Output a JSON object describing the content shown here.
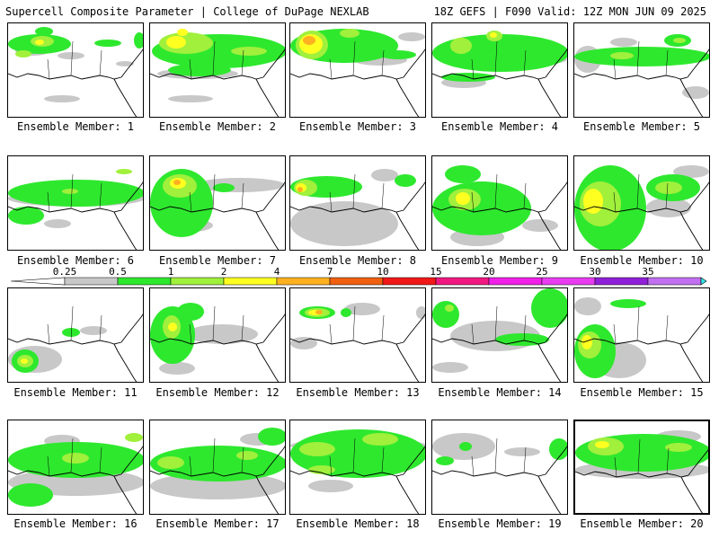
{
  "header": {
    "left": "Supercell Composite Parameter | College of DuPage NEXLAB",
    "right": "18Z GEFS | F090 Valid: 12Z MON JUN 09 2025"
  },
  "panel_label_prefix": "Ensemble Member: ",
  "members": [
    {
      "n": "1",
      "fields": [
        {
          "lvl": 0,
          "x": 8,
          "y": 26,
          "w": 38,
          "h": 10
        },
        {
          "lvl": 0,
          "x": 55,
          "y": 32,
          "w": 30,
          "h": 8
        },
        {
          "lvl": 0,
          "x": 120,
          "y": 42,
          "w": 20,
          "h": 6
        },
        {
          "lvl": 0,
          "x": 40,
          "y": 80,
          "w": 40,
          "h": 8
        },
        {
          "lvl": 1,
          "x": 0,
          "y": 12,
          "w": 70,
          "h": 22
        },
        {
          "lvl": 1,
          "x": 30,
          "y": 4,
          "w": 20,
          "h": 10
        },
        {
          "lvl": 1,
          "x": 96,
          "y": 18,
          "w": 30,
          "h": 8
        },
        {
          "lvl": 1,
          "x": 140,
          "y": 10,
          "w": 12,
          "h": 18
        },
        {
          "lvl": 2,
          "x": 25,
          "y": 14,
          "w": 26,
          "h": 12
        },
        {
          "lvl": 2,
          "x": 8,
          "y": 30,
          "w": 18,
          "h": 8
        },
        {
          "lvl": 3,
          "x": 30,
          "y": 18,
          "w": 10,
          "h": 6
        }
      ]
    },
    {
      "n": "2",
      "fields": [
        {
          "lvl": 0,
          "x": 8,
          "y": 50,
          "w": 90,
          "h": 12
        },
        {
          "lvl": 0,
          "x": 20,
          "y": 80,
          "w": 50,
          "h": 8
        },
        {
          "lvl": 1,
          "x": 2,
          "y": 12,
          "w": 150,
          "h": 38
        },
        {
          "lvl": 1,
          "x": 20,
          "y": 45,
          "w": 70,
          "h": 14
        },
        {
          "lvl": 2,
          "x": 10,
          "y": 10,
          "w": 60,
          "h": 24
        },
        {
          "lvl": 2,
          "x": 90,
          "y": 26,
          "w": 40,
          "h": 10
        },
        {
          "lvl": 3,
          "x": 18,
          "y": 14,
          "w": 22,
          "h": 14
        },
        {
          "lvl": 3,
          "x": 30,
          "y": 6,
          "w": 12,
          "h": 8
        }
      ]
    },
    {
      "n": "3",
      "fields": [
        {
          "lvl": 0,
          "x": 70,
          "y": 35,
          "w": 60,
          "h": 12
        },
        {
          "lvl": 0,
          "x": 120,
          "y": 10,
          "w": 30,
          "h": 10
        },
        {
          "lvl": 1,
          "x": 0,
          "y": 6,
          "w": 120,
          "h": 38
        },
        {
          "lvl": 1,
          "x": 100,
          "y": 30,
          "w": 40,
          "h": 10
        },
        {
          "lvl": 2,
          "x": 6,
          "y": 8,
          "w": 36,
          "h": 32
        },
        {
          "lvl": 2,
          "x": 55,
          "y": 6,
          "w": 22,
          "h": 10
        },
        {
          "lvl": 3,
          "x": 10,
          "y": 12,
          "w": 26,
          "h": 22
        },
        {
          "lvl": 4,
          "x": 14,
          "y": 14,
          "w": 14,
          "h": 10
        }
      ]
    },
    {
      "n": "4",
      "fields": [
        {
          "lvl": 0,
          "x": 10,
          "y": 60,
          "w": 50,
          "h": 12
        },
        {
          "lvl": 0,
          "x": 110,
          "y": 35,
          "w": 40,
          "h": 10
        },
        {
          "lvl": 1,
          "x": 0,
          "y": 12,
          "w": 152,
          "h": 42
        },
        {
          "lvl": 1,
          "x": 10,
          "y": 55,
          "w": 60,
          "h": 10
        },
        {
          "lvl": 2,
          "x": 20,
          "y": 16,
          "w": 24,
          "h": 18
        },
        {
          "lvl": 2,
          "x": 60,
          "y": 8,
          "w": 18,
          "h": 12
        },
        {
          "lvl": 3,
          "x": 64,
          "y": 10,
          "w": 8,
          "h": 6
        }
      ]
    },
    {
      "n": "5",
      "fields": [
        {
          "lvl": 0,
          "x": 0,
          "y": 25,
          "w": 30,
          "h": 30
        },
        {
          "lvl": 0,
          "x": 40,
          "y": 16,
          "w": 30,
          "h": 10
        },
        {
          "lvl": 0,
          "x": 120,
          "y": 70,
          "w": 30,
          "h": 14
        },
        {
          "lvl": 1,
          "x": 0,
          "y": 26,
          "w": 152,
          "h": 22
        },
        {
          "lvl": 1,
          "x": 100,
          "y": 12,
          "w": 30,
          "h": 14
        },
        {
          "lvl": 2,
          "x": 40,
          "y": 32,
          "w": 26,
          "h": 8
        },
        {
          "lvl": 2,
          "x": 110,
          "y": 16,
          "w": 14,
          "h": 6
        }
      ]
    },
    {
      "n": "6",
      "fields": [
        {
          "lvl": 0,
          "x": 0,
          "y": 38,
          "w": 152,
          "h": 18
        },
        {
          "lvl": 0,
          "x": 40,
          "y": 70,
          "w": 30,
          "h": 10
        },
        {
          "lvl": 1,
          "x": 0,
          "y": 26,
          "w": 152,
          "h": 30
        },
        {
          "lvl": 1,
          "x": 0,
          "y": 56,
          "w": 40,
          "h": 20
        },
        {
          "lvl": 2,
          "x": 60,
          "y": 36,
          "w": 18,
          "h": 6
        },
        {
          "lvl": 2,
          "x": 120,
          "y": 14,
          "w": 18,
          "h": 6
        }
      ]
    },
    {
      "n": "7",
      "fields": [
        {
          "lvl": 0,
          "x": 50,
          "y": 24,
          "w": 100,
          "h": 16
        },
        {
          "lvl": 0,
          "x": 20,
          "y": 70,
          "w": 50,
          "h": 14
        },
        {
          "lvl": 1,
          "x": 0,
          "y": 14,
          "w": 70,
          "h": 76
        },
        {
          "lvl": 1,
          "x": 70,
          "y": 30,
          "w": 24,
          "h": 10
        },
        {
          "lvl": 2,
          "x": 14,
          "y": 20,
          "w": 38,
          "h": 26
        },
        {
          "lvl": 3,
          "x": 22,
          "y": 24,
          "w": 18,
          "h": 12
        },
        {
          "lvl": 4,
          "x": 26,
          "y": 26,
          "w": 8,
          "h": 6
        }
      ]
    },
    {
      "n": "8",
      "fields": [
        {
          "lvl": 0,
          "x": 0,
          "y": 50,
          "w": 120,
          "h": 50
        },
        {
          "lvl": 0,
          "x": 90,
          "y": 14,
          "w": 30,
          "h": 14
        },
        {
          "lvl": 1,
          "x": 0,
          "y": 22,
          "w": 80,
          "h": 24
        },
        {
          "lvl": 1,
          "x": 116,
          "y": 20,
          "w": 24,
          "h": 14
        },
        {
          "lvl": 2,
          "x": 4,
          "y": 26,
          "w": 26,
          "h": 18
        },
        {
          "lvl": 3,
          "x": 6,
          "y": 30,
          "w": 12,
          "h": 10
        },
        {
          "lvl": 4,
          "x": 8,
          "y": 34,
          "w": 6,
          "h": 6
        }
      ]
    },
    {
      "n": "9",
      "fields": [
        {
          "lvl": 0,
          "x": 20,
          "y": 80,
          "w": 60,
          "h": 20
        },
        {
          "lvl": 0,
          "x": 100,
          "y": 70,
          "w": 40,
          "h": 14
        },
        {
          "lvl": 1,
          "x": 0,
          "y": 28,
          "w": 110,
          "h": 60
        },
        {
          "lvl": 1,
          "x": 14,
          "y": 10,
          "w": 40,
          "h": 20
        },
        {
          "lvl": 2,
          "x": 18,
          "y": 36,
          "w": 36,
          "h": 24
        },
        {
          "lvl": 3,
          "x": 26,
          "y": 40,
          "w": 16,
          "h": 14
        }
      ]
    },
    {
      "n": "10",
      "fields": [
        {
          "lvl": 0,
          "x": 80,
          "y": 46,
          "w": 50,
          "h": 22
        },
        {
          "lvl": 0,
          "x": 110,
          "y": 10,
          "w": 40,
          "h": 14
        },
        {
          "lvl": 1,
          "x": 0,
          "y": 10,
          "w": 80,
          "h": 96
        },
        {
          "lvl": 1,
          "x": 80,
          "y": 20,
          "w": 60,
          "h": 30
        },
        {
          "lvl": 2,
          "x": 6,
          "y": 28,
          "w": 46,
          "h": 50
        },
        {
          "lvl": 2,
          "x": 90,
          "y": 28,
          "w": 30,
          "h": 14
        },
        {
          "lvl": 3,
          "x": 10,
          "y": 36,
          "w": 22,
          "h": 28
        }
      ]
    },
    {
      "n": "11",
      "fields": [
        {
          "lvl": 0,
          "x": 0,
          "y": 64,
          "w": 60,
          "h": 30
        },
        {
          "lvl": 0,
          "x": 80,
          "y": 42,
          "w": 30,
          "h": 10
        },
        {
          "lvl": 1,
          "x": 4,
          "y": 68,
          "w": 30,
          "h": 26
        },
        {
          "lvl": 1,
          "x": 60,
          "y": 44,
          "w": 20,
          "h": 10
        },
        {
          "lvl": 2,
          "x": 10,
          "y": 74,
          "w": 18,
          "h": 14
        },
        {
          "lvl": 3,
          "x": 14,
          "y": 78,
          "w": 8,
          "h": 6
        }
      ]
    },
    {
      "n": "12",
      "fields": [
        {
          "lvl": 0,
          "x": 40,
          "y": 40,
          "w": 80,
          "h": 22
        },
        {
          "lvl": 0,
          "x": 10,
          "y": 82,
          "w": 40,
          "h": 14
        },
        {
          "lvl": 1,
          "x": 0,
          "y": 20,
          "w": 50,
          "h": 64
        },
        {
          "lvl": 1,
          "x": 30,
          "y": 16,
          "w": 30,
          "h": 20
        },
        {
          "lvl": 2,
          "x": 14,
          "y": 30,
          "w": 20,
          "h": 26
        },
        {
          "lvl": 3,
          "x": 20,
          "y": 38,
          "w": 10,
          "h": 10
        }
      ]
    },
    {
      "n": "13",
      "fields": [
        {
          "lvl": 0,
          "x": 60,
          "y": 16,
          "w": 40,
          "h": 14
        },
        {
          "lvl": 0,
          "x": 0,
          "y": 54,
          "w": 30,
          "h": 14
        },
        {
          "lvl": 0,
          "x": 140,
          "y": 20,
          "w": 12,
          "h": 14
        },
        {
          "lvl": 1,
          "x": 10,
          "y": 20,
          "w": 40,
          "h": 14
        },
        {
          "lvl": 1,
          "x": 56,
          "y": 22,
          "w": 12,
          "h": 10
        },
        {
          "lvl": 2,
          "x": 16,
          "y": 22,
          "w": 28,
          "h": 10
        },
        {
          "lvl": 3,
          "x": 20,
          "y": 24,
          "w": 16,
          "h": 6
        },
        {
          "lvl": 4,
          "x": 28,
          "y": 24,
          "w": 8,
          "h": 5
        }
      ]
    },
    {
      "n": "14",
      "fields": [
        {
          "lvl": 0,
          "x": 20,
          "y": 36,
          "w": 100,
          "h": 34
        },
        {
          "lvl": 0,
          "x": 0,
          "y": 82,
          "w": 40,
          "h": 12
        },
        {
          "lvl": 1,
          "x": 0,
          "y": 14,
          "w": 30,
          "h": 30
        },
        {
          "lvl": 1,
          "x": 110,
          "y": 0,
          "w": 42,
          "h": 44
        },
        {
          "lvl": 1,
          "x": 70,
          "y": 50,
          "w": 60,
          "h": 14
        },
        {
          "lvl": 2,
          "x": 14,
          "y": 18,
          "w": 10,
          "h": 8
        }
      ]
    },
    {
      "n": "15",
      "fields": [
        {
          "lvl": 0,
          "x": 20,
          "y": 60,
          "w": 60,
          "h": 40
        },
        {
          "lvl": 0,
          "x": 0,
          "y": 10,
          "w": 30,
          "h": 20
        },
        {
          "lvl": 1,
          "x": 0,
          "y": 40,
          "w": 46,
          "h": 60
        },
        {
          "lvl": 1,
          "x": 40,
          "y": 12,
          "w": 40,
          "h": 10
        },
        {
          "lvl": 2,
          "x": 4,
          "y": 48,
          "w": 26,
          "h": 30
        },
        {
          "lvl": 3,
          "x": 8,
          "y": 52,
          "w": 12,
          "h": 16
        }
      ]
    },
    {
      "n": "16",
      "fields": [
        {
          "lvl": 0,
          "x": 0,
          "y": 54,
          "w": 152,
          "h": 30
        },
        {
          "lvl": 0,
          "x": 40,
          "y": 16,
          "w": 40,
          "h": 14
        },
        {
          "lvl": 1,
          "x": 0,
          "y": 24,
          "w": 152,
          "h": 40
        },
        {
          "lvl": 1,
          "x": 0,
          "y": 70,
          "w": 50,
          "h": 26
        },
        {
          "lvl": 2,
          "x": 60,
          "y": 36,
          "w": 30,
          "h": 12
        },
        {
          "lvl": 2,
          "x": 130,
          "y": 14,
          "w": 20,
          "h": 10
        }
      ]
    },
    {
      "n": "17",
      "fields": [
        {
          "lvl": 0,
          "x": 0,
          "y": 58,
          "w": 152,
          "h": 30
        },
        {
          "lvl": 0,
          "x": 100,
          "y": 14,
          "w": 40,
          "h": 14
        },
        {
          "lvl": 1,
          "x": 0,
          "y": 28,
          "w": 152,
          "h": 40
        },
        {
          "lvl": 1,
          "x": 120,
          "y": 8,
          "w": 32,
          "h": 20
        },
        {
          "lvl": 2,
          "x": 8,
          "y": 40,
          "w": 30,
          "h": 14
        },
        {
          "lvl": 2,
          "x": 96,
          "y": 34,
          "w": 24,
          "h": 10
        }
      ]
    },
    {
      "n": "18",
      "fields": [
        {
          "lvl": 0,
          "x": 0,
          "y": 20,
          "w": 152,
          "h": 16
        },
        {
          "lvl": 0,
          "x": 20,
          "y": 66,
          "w": 50,
          "h": 14
        },
        {
          "lvl": 1,
          "x": 0,
          "y": 10,
          "w": 152,
          "h": 54
        },
        {
          "lvl": 2,
          "x": 10,
          "y": 24,
          "w": 40,
          "h": 16
        },
        {
          "lvl": 2,
          "x": 80,
          "y": 14,
          "w": 40,
          "h": 14
        },
        {
          "lvl": 2,
          "x": 20,
          "y": 50,
          "w": 30,
          "h": 10
        }
      ]
    },
    {
      "n": "19",
      "fields": [
        {
          "lvl": 0,
          "x": 0,
          "y": 14,
          "w": 70,
          "h": 30
        },
        {
          "lvl": 0,
          "x": 80,
          "y": 30,
          "w": 40,
          "h": 10
        },
        {
          "lvl": 1,
          "x": 30,
          "y": 24,
          "w": 14,
          "h": 10
        },
        {
          "lvl": 1,
          "x": 130,
          "y": 20,
          "w": 22,
          "h": 24
        },
        {
          "lvl": 1,
          "x": 4,
          "y": 40,
          "w": 20,
          "h": 10
        }
      ]
    },
    {
      "n": "20",
      "fields": [
        {
          "lvl": 0,
          "x": 0,
          "y": 44,
          "w": 152,
          "h": 20
        },
        {
          "lvl": 0,
          "x": 90,
          "y": 10,
          "w": 50,
          "h": 14
        },
        {
          "lvl": 1,
          "x": 0,
          "y": 14,
          "w": 152,
          "h": 42
        },
        {
          "lvl": 2,
          "x": 14,
          "y": 18,
          "w": 40,
          "h": 20
        },
        {
          "lvl": 2,
          "x": 100,
          "y": 24,
          "w": 30,
          "h": 10
        },
        {
          "lvl": 3,
          "x": 22,
          "y": 22,
          "w": 16,
          "h": 8
        }
      ]
    }
  ],
  "colorbar": {
    "colors": [
      "#c8c8c8",
      "#2ee82e",
      "#a0f03c",
      "#ffff20",
      "#ffb020",
      "#f06010",
      "#f01818",
      "#f01880",
      "#f020e8",
      "#e83cf0",
      "#9020d8",
      "#c070f0",
      "#30e8e8"
    ],
    "labels": [
      "0.25",
      "0.5",
      "1",
      "2",
      "4",
      "7",
      "10",
      "15",
      "20",
      "25",
      "30",
      "35"
    ]
  }
}
